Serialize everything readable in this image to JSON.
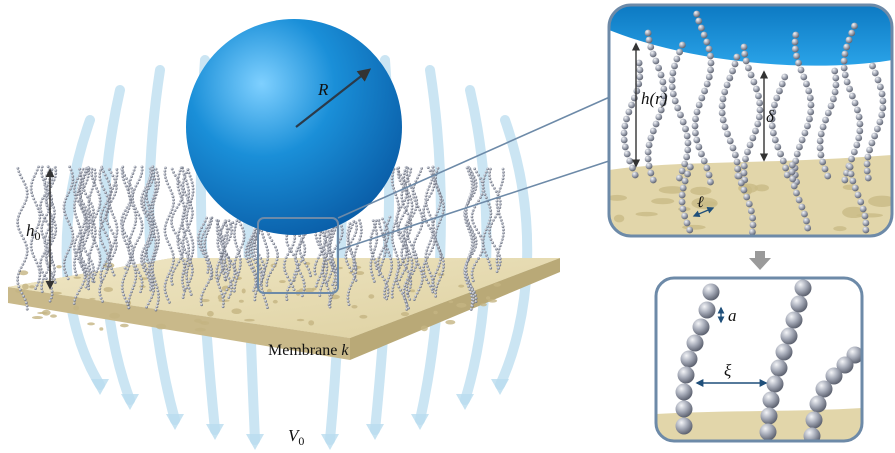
{
  "labels": {
    "radius": "R",
    "brush_height_symbol": "h",
    "brush_height_sub": "0",
    "membrane_text": "Membrane ",
    "membrane_symbol": "k",
    "velocity_symbol": "V",
    "velocity_sub": "0",
    "local_height": "h(r)",
    "compression": "δ",
    "grafting_spacing": "ℓ",
    "monomer_size": "a",
    "chain_spacing": "ξ"
  },
  "colors": {
    "particle": "#1a8fd8",
    "membrane": "#e9dfb8",
    "chain_bead": "#9a9fae",
    "flow_arrow": "#b9dcef",
    "inset_border": "#6d8aa8"
  }
}
